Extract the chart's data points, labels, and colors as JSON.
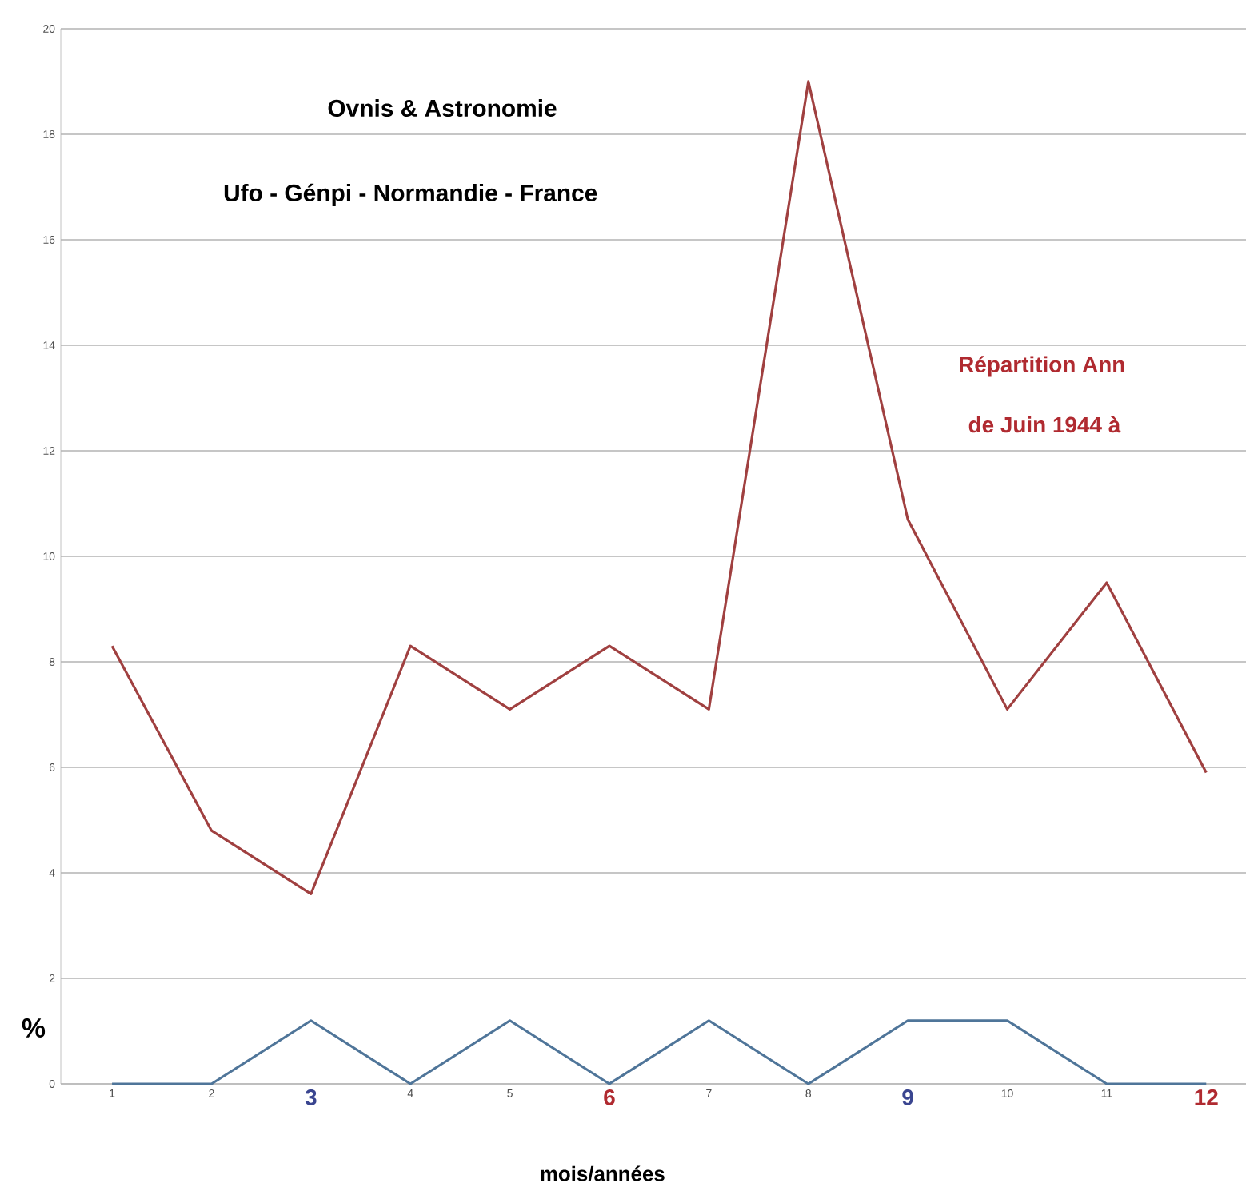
{
  "chart_data": {
    "type": "line",
    "title": "Ovnis & Astronomie",
    "subtitle": "Ufo - Génpi - Normandie - France",
    "xlabel": "mois/années",
    "ylabel": "%",
    "annotations": [
      "Répartition Ann",
      "de Juin 1944 à"
    ],
    "categories": [
      "1",
      "2",
      "3",
      "4",
      "5",
      "6",
      "7",
      "8",
      "9",
      "10",
      "11",
      "12"
    ],
    "series": [
      {
        "color": "#a04040",
        "values": [
          8.3,
          4.8,
          3.6,
          8.3,
          7.1,
          8.3,
          7.1,
          19.0,
          10.7,
          7.1,
          9.5,
          5.9
        ]
      },
      {
        "color": "#4f7599",
        "values": [
          0,
          0,
          1.2,
          0,
          1.2,
          0,
          1.2,
          0,
          1.2,
          1.2,
          0,
          0
        ]
      }
    ],
    "ylim": [
      0,
      20
    ],
    "yticks": [
      0,
      2,
      4,
      6,
      8,
      10,
      12,
      14,
      16,
      18,
      20
    ],
    "grid": "y",
    "marker": "none",
    "line_style": "solid"
  }
}
